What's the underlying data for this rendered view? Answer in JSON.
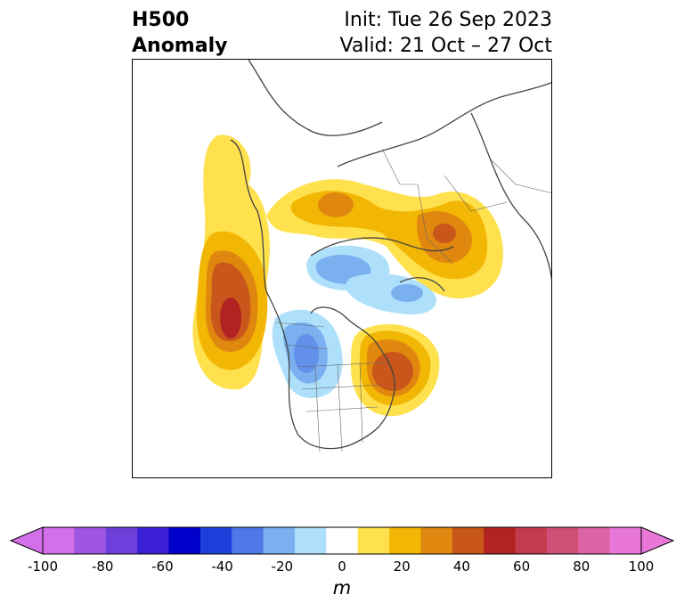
{
  "header": {
    "title_line1": "H500",
    "title_line2": "Anomaly",
    "init": "Init: Tue 26 Sep 2023",
    "valid": "Valid: 21 Oct – 27 Oct"
  },
  "colorbar": {
    "unit": "m",
    "ticks": [
      "-100",
      "-80",
      "-60",
      "-40",
      "-20",
      "0",
      "20",
      "40",
      "60",
      "80",
      "100"
    ],
    "levels": [
      -100,
      -90,
      -80,
      -70,
      -60,
      -50,
      -40,
      -30,
      -20,
      -10,
      10,
      20,
      30,
      40,
      50,
      60,
      70,
      80,
      90,
      100
    ],
    "colors": [
      "#d36fe8",
      "#a055e0",
      "#6f3fdc",
      "#3a1fd4",
      "#0000cc",
      "#1f3fdc",
      "#4f77e8",
      "#7ab0f0",
      "#aee0fb",
      "#ffffff",
      "#ffe14e",
      "#f2b705",
      "#e0870f",
      "#c9561a",
      "#b22222",
      "#c23c50",
      "#d04f77",
      "#dc63a5",
      "#e877d8"
    ],
    "extend_low_color": "#d36fe8",
    "extend_high_color": "#e877d8"
  },
  "map": {
    "projection": "north polar stereographic",
    "anomalies": [
      {
        "region": "Gulf of Alaska / NE Pacific",
        "sign": "positive",
        "peak_m": 60
      },
      {
        "region": "NE Canada / Hudson Bay east",
        "sign": "positive",
        "peak_m": 50
      },
      {
        "region": "Northern Russia / Siberia",
        "sign": "positive",
        "peak_m": 40
      },
      {
        "region": "North Scandinavia / Barents",
        "sign": "positive",
        "peak_m": 40
      },
      {
        "region": "Canadian Prairies / NW Canada",
        "sign": "negative",
        "peak_m": -40
      },
      {
        "region": "Arctic Ocean",
        "sign": "negative",
        "peak_m": -30
      },
      {
        "region": "Greenland north",
        "sign": "negative",
        "peak_m": -30
      }
    ]
  }
}
